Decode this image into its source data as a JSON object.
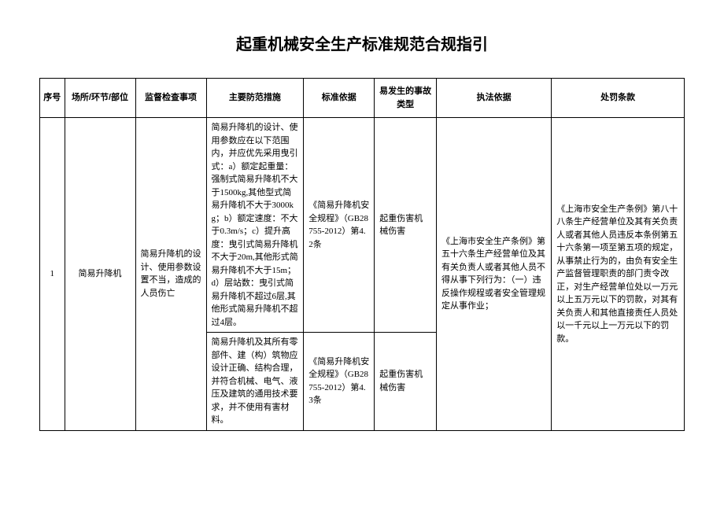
{
  "title": "起重机械安全生产标准规范合规指引",
  "headers": {
    "seq": "序号",
    "place": "场所/环节/部位",
    "check": "监督检查事项",
    "measure": "主要防范措施",
    "basis": "标准依据",
    "accident": "易发生的事故类型",
    "law": "执法依据",
    "penalty": "处罚条款"
  },
  "rows": {
    "r1": {
      "seq": "1",
      "place": "简易升降机",
      "check": "简易升降机的设计、使用参数设置不当，造成的人员伤亡",
      "measure": "简易升降机的设计、使用参数应在以下范围内，并应优先采用曳引式：a）额定起重量：强制式简易升降机不大于1500kg,其他型式简易升降机不大于3000kg；b）额定速度：不大于0.3m/s；c）提升高度：曳引式简易升降机不大于20m,其他形式简易升降机不大于15m；d）层站数：曳引式简易升降机不超过6层,其他形式简易升降机不超过4层。",
      "basis": "《简易升降机安全规程》（GB28755-2012）第4.2条",
      "accident": "起重伤害机械伤害",
      "law": "《上海市安全生产条例》第五十六条生产经营单位及其有关负责人或者其他人员不得从事下列行为：（一）违反操作规程或者安全管理规定从事作业；",
      "penalty": "《上海市安全生产条例》第八十八条生产经营单位及其有关负责人或者其他人员违反本条例第五十六条第一项至第五项的规定，从事禁止行为的，由负有安全生产监督管理职责的部门责令改正，对生产经营单位处以一万元以上五万元以下的罚款，对其有关负责人和其他直接责任人员处以一千元以上一万元以下的罚款。"
    },
    "r2": {
      "measure": "简易升降机及其所有零部件、建（构）筑物应设计正确、结构合理，并符合机械、电气、液压及建筑的通用技术要求，并不使用有害材料。",
      "basis": "《简易升降机安全规程》（GB28755-2012）第4.3条",
      "accident": "起重伤害机械伤害"
    }
  }
}
